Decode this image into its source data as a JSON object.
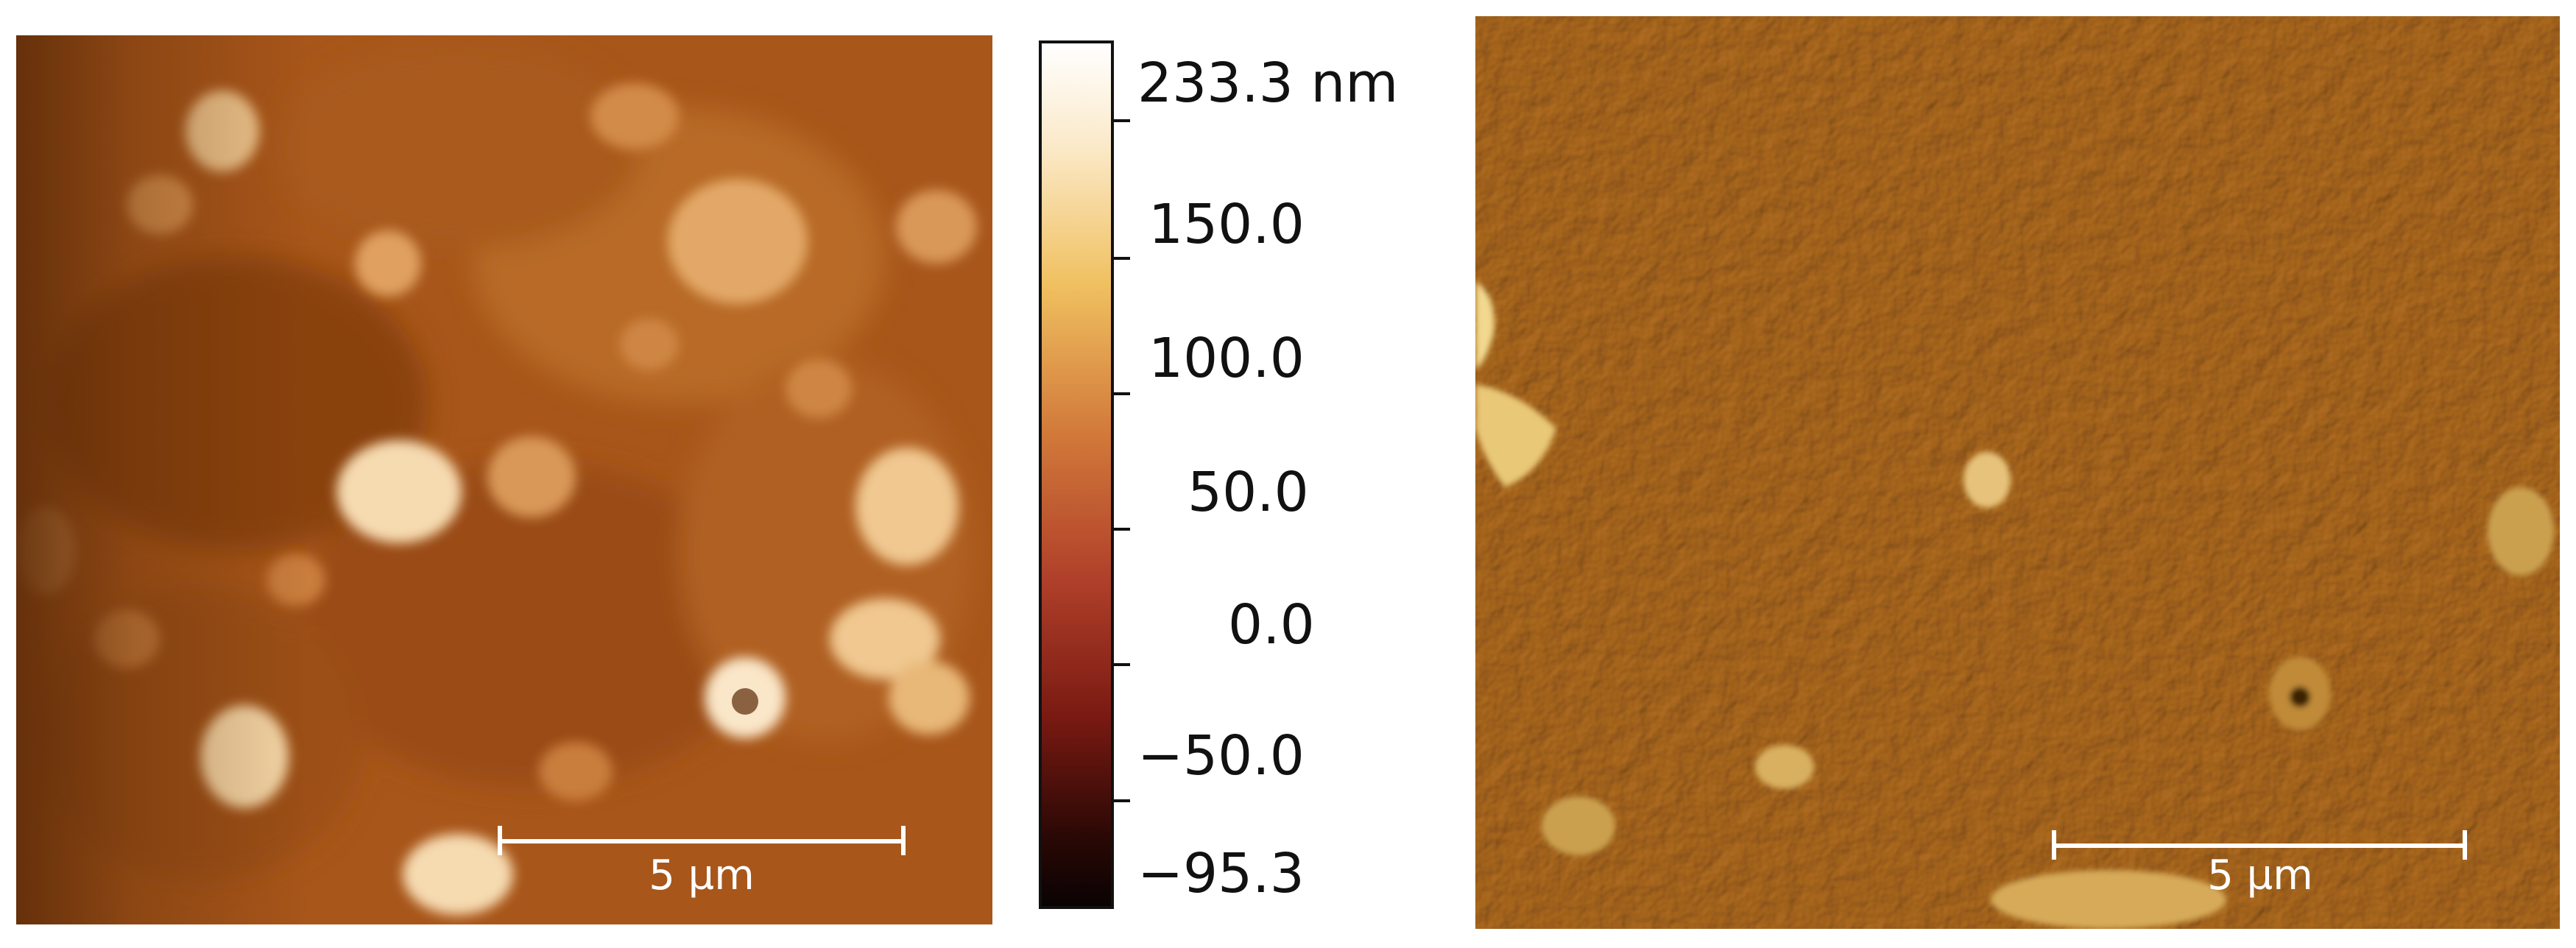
{
  "height_image": {
    "scale_bar_label": "5 µm"
  },
  "amplitude_image": {
    "scale_bar_label": "5 µm"
  },
  "colorbar": {
    "labels": [
      "233.3 nm",
      "150.0",
      "100.0",
      "50.0",
      "0.0",
      "−50.0",
      "−95.3"
    ],
    "colors": {
      "top": "#ffffff",
      "upper": "#f0c060",
      "mid": "#c05a2a",
      "low": "#7a1a12",
      "bottom": "#0a0303"
    }
  }
}
